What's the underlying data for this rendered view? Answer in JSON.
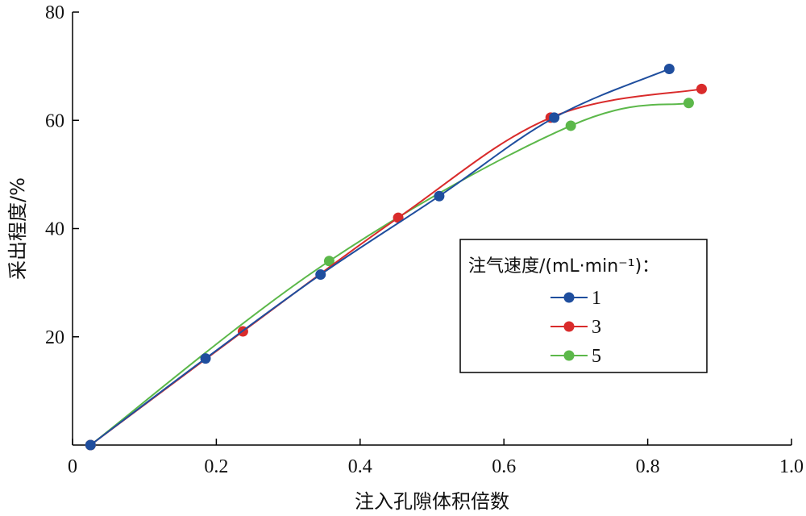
{
  "chart_data": {
    "type": "line",
    "xlabel": "注入孔隙体积倍数",
    "ylabel": "采出程度/%",
    "xlim": [
      0,
      1.0
    ],
    "ylim": [
      0,
      80
    ],
    "x_ticks": [
      "0",
      "0.2",
      "0.4",
      "0.6",
      "0.8",
      "1.0"
    ],
    "y_ticks": [
      "20",
      "40",
      "60",
      "80"
    ],
    "legend_title": "注气速度/(mL·min⁻¹)：",
    "legend_position": "center-right",
    "series": [
      {
        "name": "1",
        "color": "#1f4e9e",
        "x": [
          0.025,
          0.185,
          0.345,
          0.51,
          0.67,
          0.83
        ],
        "y": [
          0,
          16,
          31.5,
          46,
          60.5,
          69.5
        ]
      },
      {
        "name": "3",
        "color": "#d92b2b",
        "x": [
          0.025,
          0.237,
          0.453,
          0.665,
          0.875
        ],
        "y": [
          0,
          21,
          42,
          60.5,
          65.8
        ]
      },
      {
        "name": "5",
        "color": "#5cb84a",
        "x": [
          0.025,
          0.357,
          0.693,
          0.857
        ],
        "y": [
          0,
          34,
          59,
          63.2
        ]
      }
    ]
  }
}
